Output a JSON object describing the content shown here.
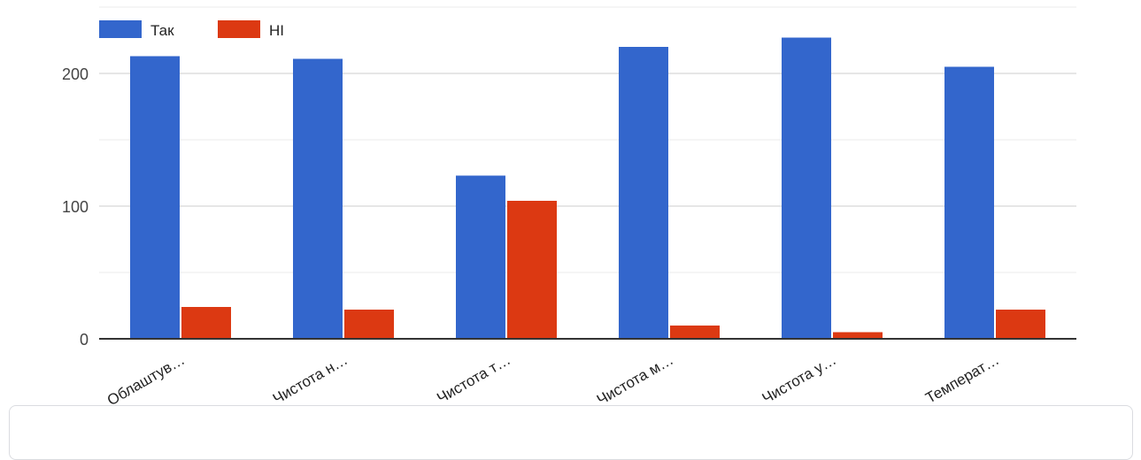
{
  "chart_data": {
    "type": "bar",
    "categories": [
      "Облаштув…",
      "Чистота н…",
      "Чистота т…",
      "Чистота м…",
      "Чистота у…",
      "Температ…"
    ],
    "series": [
      {
        "name": "Так",
        "color": "#3366cc",
        "values": [
          213,
          211,
          123,
          220,
          227,
          205
        ]
      },
      {
        "name": "НІ",
        "color": "#dc3912",
        "values": [
          24,
          22,
          104,
          10,
          5,
          22
        ]
      }
    ],
    "ylim": [
      0,
      250
    ],
    "yticks": [
      0,
      100,
      200
    ],
    "grid": true,
    "legend": "top-left"
  }
}
